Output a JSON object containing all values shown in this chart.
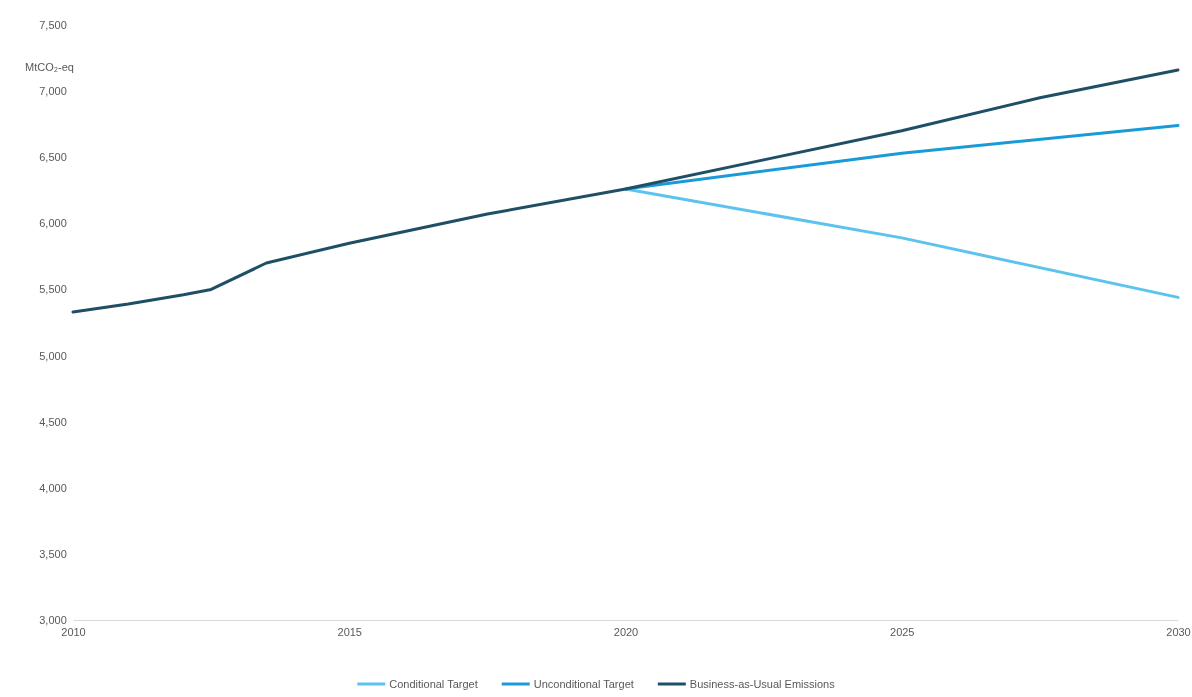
{
  "chart_data": {
    "type": "line",
    "ylabel": "MtCO₂-eq",
    "xlim": [
      2010,
      2030
    ],
    "xticks": [
      2010,
      2015,
      2020,
      2025,
      2030
    ],
    "ylim": [
      3000,
      7500
    ],
    "yticks": [
      {
        "value": 3000,
        "label": "3,000"
      },
      {
        "value": 3500,
        "label": "3,500"
      },
      {
        "value": 4000,
        "label": "4,000"
      },
      {
        "value": 4500,
        "label": "4,500"
      },
      {
        "value": 5000,
        "label": "5,000"
      },
      {
        "value": 5500,
        "label": "5,500"
      },
      {
        "value": 6000,
        "label": "6,000"
      },
      {
        "value": 6500,
        "label": "6,500"
      },
      {
        "value": 7000,
        "label": "7,000"
      },
      {
        "value": 7500,
        "label": "7,500"
      }
    ],
    "grid": false,
    "legend": "bottom",
    "marker": "none",
    "line_style": "solid",
    "series": [
      {
        "name": "Conditional Target",
        "color": "#5cc3ee",
        "x": [
          2020,
          2025,
          2030
        ],
        "values": [
          6260,
          5890,
          5440
        ]
      },
      {
        "name": "Unconditional Target",
        "color": "#1a9bd7",
        "x": [
          2020,
          2025,
          2030
        ],
        "values": [
          6260,
          6530,
          6740
        ]
      },
      {
        "name": "Business-as-Usual Emissions",
        "color": "#1e4f66",
        "x": [
          2010,
          2011,
          2012,
          2012.5,
          2013.5,
          2015,
          2017.5,
          2020,
          2022.5,
          2025,
          2027.5,
          2030
        ],
        "values": [
          5330,
          5390,
          5460,
          5500,
          5700,
          5850,
          6070,
          6260,
          6480,
          6700,
          6950,
          7160
        ]
      }
    ]
  }
}
